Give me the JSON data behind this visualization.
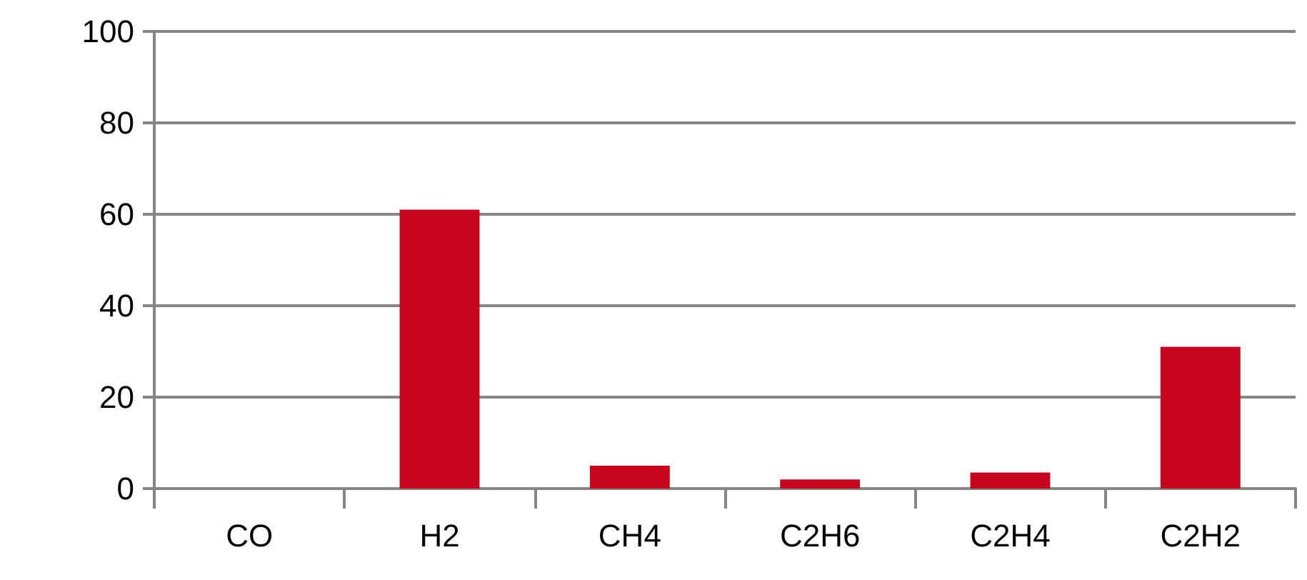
{
  "chart_data": {
    "type": "bar",
    "categories": [
      "CO",
      "H2",
      "CH4",
      "C2H6",
      "C2H4",
      "C2H2"
    ],
    "values": [
      0,
      61,
      5,
      2,
      3.5,
      31
    ],
    "color": "#c8061e",
    "ylim": [
      0,
      100
    ],
    "yticks": [
      0,
      20,
      40,
      60,
      80,
      100
    ],
    "grid": "y"
  }
}
